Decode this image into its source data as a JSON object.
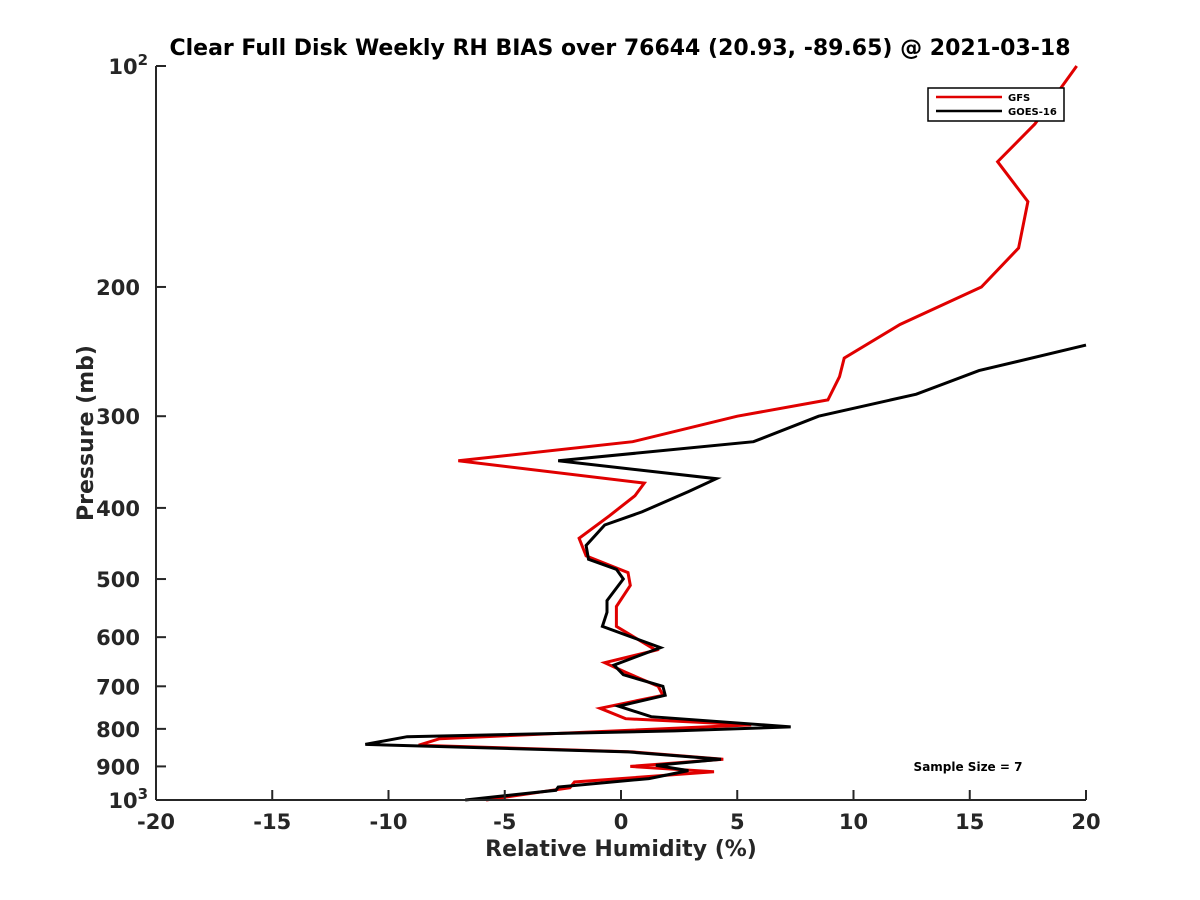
{
  "chart_data": {
    "type": "line",
    "title": "Clear Full Disk Weekly RH BIAS over 76644 (20.93, -89.65) @ 2021-03-18",
    "xlabel": "Relative Humidity (%)",
    "ylabel": "Pressure (mb)",
    "xlim": [
      -20,
      20
    ],
    "ylim": [
      100,
      1000
    ],
    "yscale": "log",
    "y_reversed": true,
    "x_ticks": [
      {
        "value": -20,
        "label": "-20"
      },
      {
        "value": -15,
        "label": "-15"
      },
      {
        "value": -10,
        "label": "-10"
      },
      {
        "value": -5,
        "label": "-5"
      },
      {
        "value": 0,
        "label": "0"
      },
      {
        "value": 5,
        "label": "5"
      },
      {
        "value": 10,
        "label": "10"
      },
      {
        "value": 15,
        "label": "15"
      },
      {
        "value": 20,
        "label": "20"
      }
    ],
    "y_ticks": [
      {
        "value": 100,
        "label": "10",
        "sup": "2"
      },
      {
        "value": 200,
        "label": "200"
      },
      {
        "value": 300,
        "label": "300"
      },
      {
        "value": 400,
        "label": "400"
      },
      {
        "value": 500,
        "label": "500"
      },
      {
        "value": 600,
        "label": "600"
      },
      {
        "value": 700,
        "label": "700"
      },
      {
        "value": 800,
        "label": "800"
      },
      {
        "value": 900,
        "label": "900"
      },
      {
        "value": 1000,
        "label": "10",
        "sup": "3"
      }
    ],
    "legend_position": "top-right",
    "annotation": "Sample Size = 7",
    "series": [
      {
        "name": "GFS",
        "color": "#e00000",
        "points": [
          [
            19.6,
            100
          ],
          [
            17.8,
            120
          ],
          [
            16.2,
            135
          ],
          [
            17.5,
            153
          ],
          [
            17.1,
            177
          ],
          [
            15.5,
            200
          ],
          [
            12.0,
            225
          ],
          [
            9.6,
            250
          ],
          [
            9.4,
            265
          ],
          [
            8.9,
            285
          ],
          [
            5.0,
            300
          ],
          [
            0.5,
            325
          ],
          [
            -7.0,
            345
          ],
          [
            1.0,
            370
          ],
          [
            0.6,
            385
          ],
          [
            -0.5,
            410
          ],
          [
            -1.8,
            440
          ],
          [
            -1.5,
            465
          ],
          [
            0.3,
            490
          ],
          [
            0.4,
            510
          ],
          [
            -0.2,
            545
          ],
          [
            -0.2,
            580
          ],
          [
            1.5,
            625
          ],
          [
            -0.7,
            650
          ],
          [
            0.2,
            670
          ],
          [
            1.6,
            700
          ],
          [
            1.8,
            720
          ],
          [
            -0.9,
            750
          ],
          [
            0.2,
            775
          ],
          [
            5.6,
            790
          ],
          [
            -7.8,
            825
          ],
          [
            -8.7,
            842
          ],
          [
            0.5,
            860
          ],
          [
            4.4,
            880
          ],
          [
            0.4,
            900
          ],
          [
            4.0,
            915
          ],
          [
            -2.0,
            945
          ],
          [
            -2.2,
            962
          ],
          [
            -5.8,
            1000
          ]
        ]
      },
      {
        "name": "GOES-16",
        "color": "#000000",
        "points": [
          [
            20.0,
            240
          ],
          [
            15.4,
            260
          ],
          [
            12.7,
            280
          ],
          [
            8.5,
            300
          ],
          [
            5.7,
            325
          ],
          [
            -2.7,
            345
          ],
          [
            4.1,
            365
          ],
          [
            2.9,
            380
          ],
          [
            0.9,
            405
          ],
          [
            -0.7,
            422
          ],
          [
            -1.5,
            450
          ],
          [
            -1.4,
            470
          ],
          [
            -0.2,
            485
          ],
          [
            0.1,
            500
          ],
          [
            -0.6,
            535
          ],
          [
            -0.6,
            555
          ],
          [
            -0.8,
            580
          ],
          [
            1.7,
            620
          ],
          [
            -0.3,
            655
          ],
          [
            0.1,
            675
          ],
          [
            1.8,
            700
          ],
          [
            1.9,
            720
          ],
          [
            -0.1,
            745
          ],
          [
            1.3,
            770
          ],
          [
            7.3,
            795
          ],
          [
            2.3,
            805
          ],
          [
            -9.2,
            820
          ],
          [
            -11.0,
            840
          ],
          [
            0.3,
            860
          ],
          [
            4.3,
            880
          ],
          [
            1.5,
            897
          ],
          [
            2.9,
            912
          ],
          [
            1.2,
            935
          ],
          [
            -2.7,
            960
          ],
          [
            -2.8,
            970
          ],
          [
            -6.7,
            1000
          ]
        ]
      }
    ]
  }
}
